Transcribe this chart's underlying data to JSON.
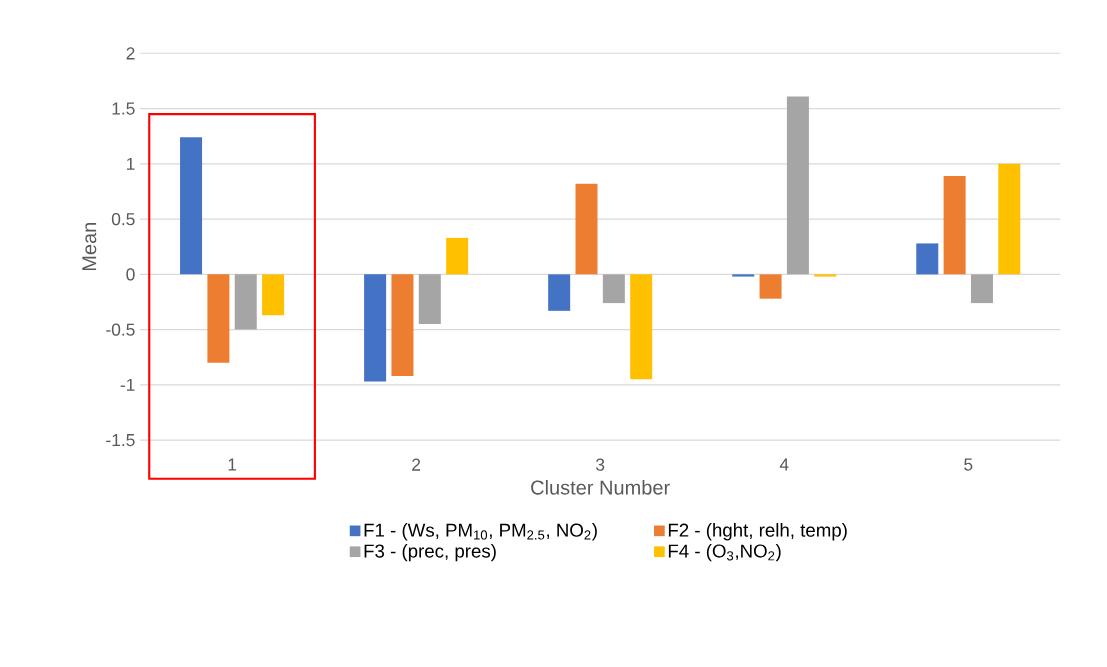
{
  "chart_data": {
    "type": "bar",
    "xlabel": "Cluster Number",
    "ylabel": "Mean",
    "categories": [
      "1",
      "2",
      "3",
      "4",
      "5"
    ],
    "series": [
      {
        "name": "F1 - (Ws, PM$_{10}$, PM$_{2.5}$, NO$_{2}$)",
        "color": "#4472c4",
        "values": [
          1.24,
          -0.97,
          -0.33,
          -0.02,
          0.28
        ]
      },
      {
        "name": "F2 - (hght, relh, temp)",
        "color": "#ed7d31",
        "values": [
          -0.8,
          -0.92,
          0.82,
          -0.22,
          0.89
        ]
      },
      {
        "name": "F3 - (prec, pres)",
        "color": "#a5a5a5",
        "values": [
          -0.5,
          -0.45,
          -0.26,
          1.61,
          -0.26
        ]
      },
      {
        "name": "F4 - (O$_{3}$,NO$_{2}$)",
        "color": "#ffc000",
        "values": [
          -0.37,
          0.33,
          -0.95,
          -0.02,
          1.0
        ]
      }
    ],
    "ylim": [
      -1.5,
      2
    ],
    "yticks": [
      -1.5,
      -1,
      -0.5,
      0,
      0.5,
      1,
      1.5,
      2
    ],
    "grid": "y",
    "legend": "bottom"
  }
}
